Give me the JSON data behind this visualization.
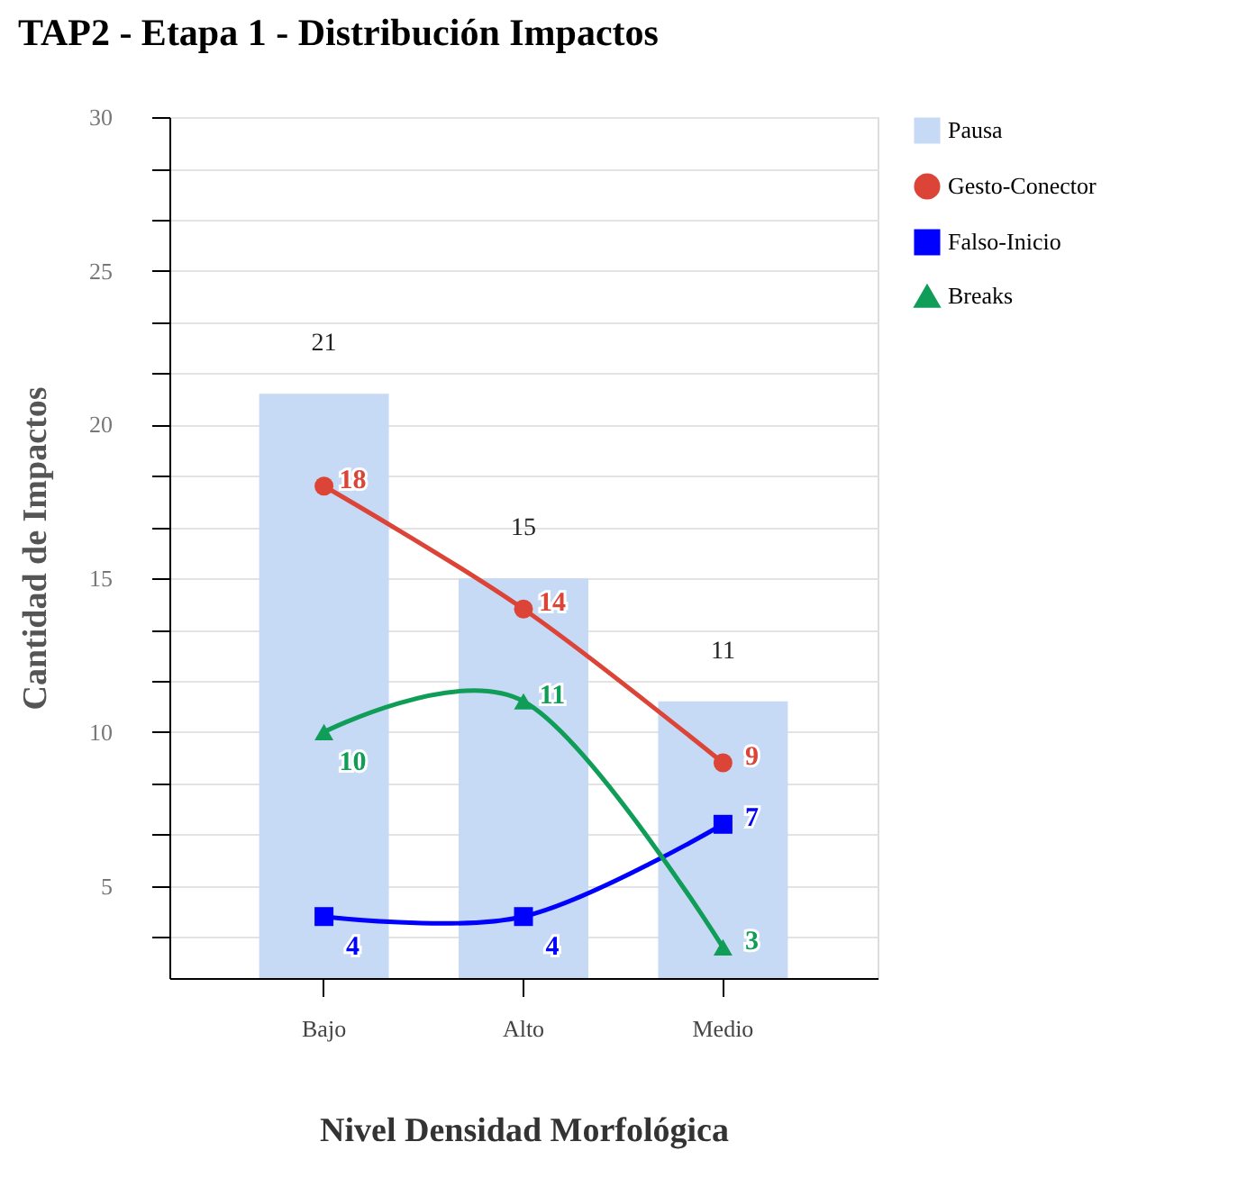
{
  "chart_data": {
    "type": "bar",
    "title": "TAP2 - Etapa 1 - Distribución Impactos",
    "xlabel": "Nivel Densidad Morfológica",
    "ylabel": "Cantidad de Impactos",
    "categories": [
      "Bajo",
      "Alto",
      "Medio"
    ],
    "series": [
      {
        "name": "Pausa",
        "color": "#c6d9f5",
        "values": [
          21,
          15,
          11
        ]
      },
      {
        "name": "Gesto-Conector",
        "type": "line",
        "marker": "circle",
        "color": "#db4437",
        "values": [
          18,
          14,
          9
        ]
      },
      {
        "name": "Falso-Inicio",
        "type": "line",
        "marker": "square",
        "color": "#0000ff",
        "values": [
          4,
          4,
          7
        ]
      },
      {
        "name": "Breaks",
        "type": "line",
        "marker": "triangle",
        "color": "#0f9d58",
        "values": [
          10,
          11,
          3
        ]
      }
    ],
    "ylim": [
      2,
      30
    ],
    "yticks": [
      {
        "value": 3.33,
        "label": null
      },
      5,
      {
        "value": 6.67,
        "label": null
      },
      {
        "value": 8.33,
        "label": null
      },
      10,
      {
        "value": 11.67,
        "label": null
      },
      {
        "value": 13.33,
        "label": null
      },
      15,
      {
        "value": 16.67,
        "label": null
      },
      {
        "value": 18.33,
        "label": null
      },
      20,
      {
        "value": 21.67,
        "label": null
      },
      {
        "value": 23.33,
        "label": null
      },
      25,
      {
        "value": 26.67,
        "label": null
      },
      {
        "value": 28.33,
        "label": null
      },
      30
    ],
    "grid": "y",
    "legend": "top right",
    "data_labels": true
  }
}
